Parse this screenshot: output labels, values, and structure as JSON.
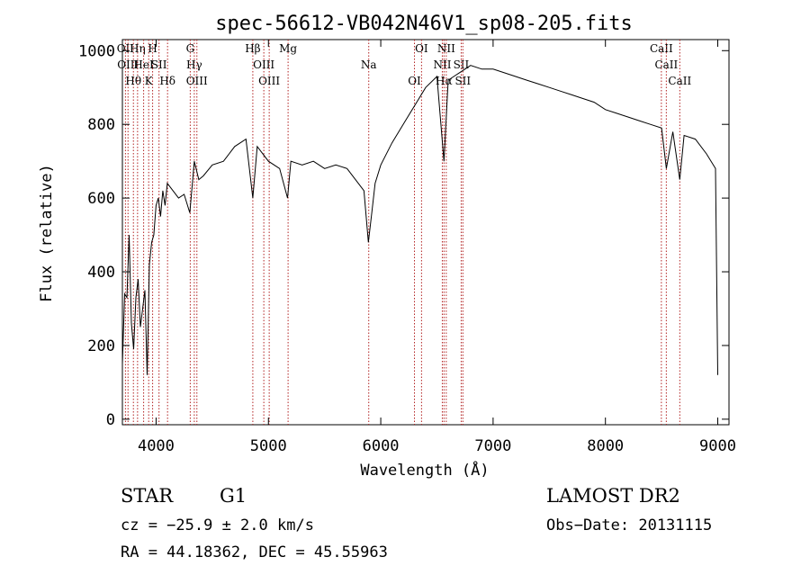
{
  "chart_data": {
    "type": "line",
    "title": "spec-56612-VB042N46V1_sp08-205.fits",
    "xlabel": "Wavelength (Å)",
    "ylabel": "Flux (relative)",
    "xlim": [
      3700,
      9100
    ],
    "ylim": [
      -15,
      1030
    ],
    "x_ticks": [
      4000,
      5000,
      6000,
      7000,
      8000,
      9000
    ],
    "y_ticks": [
      0,
      200,
      400,
      600,
      800,
      1000
    ],
    "x_tick_labels": [
      "4000",
      "5000",
      "6000",
      "7000",
      "8000",
      "9000"
    ],
    "y_tick_labels": [
      "0",
      "200",
      "400",
      "600",
      "800",
      "1000"
    ],
    "line_color": "#000000",
    "marker_color": "#b22222",
    "series": [
      {
        "x": [
          3700,
          3720,
          3740,
          3760,
          3780,
          3800,
          3820,
          3840,
          3860,
          3880,
          3900,
          3920,
          3940,
          3960,
          3980,
          4000,
          4020,
          4040,
          4060,
          4080,
          4100,
          4150,
          4200,
          4250,
          4300,
          4340,
          4380,
          4420,
          4500,
          4600,
          4700,
          4800,
          4861,
          4900,
          5000,
          5100,
          5170,
          5200,
          5300,
          5400,
          5500,
          5600,
          5700,
          5800,
          5850,
          5890,
          5920,
          5950,
          6000,
          6100,
          6200,
          6300,
          6400,
          6500,
          6563,
          6600,
          6700,
          6800,
          6900,
          7000,
          7100,
          7200,
          7300,
          7400,
          7500,
          7600,
          7700,
          7800,
          7900,
          8000,
          8100,
          8200,
          8300,
          8400,
          8500,
          8542,
          8600,
          8662,
          8700,
          8800,
          8900,
          8980,
          9000
        ],
        "y": [
          150,
          340,
          330,
          500,
          260,
          190,
          330,
          380,
          250,
          300,
          350,
          120,
          420,
          480,
          500,
          580,
          600,
          550,
          620,
          580,
          640,
          620,
          600,
          610,
          560,
          700,
          650,
          660,
          690,
          700,
          740,
          760,
          600,
          740,
          700,
          680,
          600,
          700,
          690,
          700,
          680,
          690,
          680,
          640,
          620,
          480,
          560,
          640,
          690,
          750,
          800,
          850,
          900,
          930,
          700,
          920,
          940,
          960,
          950,
          950,
          940,
          930,
          920,
          910,
          900,
          890,
          880,
          870,
          860,
          840,
          830,
          820,
          810,
          800,
          790,
          680,
          780,
          650,
          770,
          760,
          720,
          680,
          120
        ]
      }
    ],
    "line_markers": [
      {
        "wl": 3727,
        "label": "OII"
      },
      {
        "wl": 3750,
        "label": "OIII"
      },
      {
        "wl": 3798,
        "label": "Hθ"
      },
      {
        "wl": 3835,
        "label": "Hη"
      },
      {
        "wl": 3889,
        "label": "HeI"
      },
      {
        "wl": 3934,
        "label": "K"
      },
      {
        "wl": 3969,
        "label": "H"
      },
      {
        "wl": 4026,
        "label": "SII"
      },
      {
        "wl": 4102,
        "label": "Hδ"
      },
      {
        "wl": 4304,
        "label": "G"
      },
      {
        "wl": 4340,
        "label": "Hγ"
      },
      {
        "wl": 4363,
        "label": "OIII"
      },
      {
        "wl": 4861,
        "label": "Hβ"
      },
      {
        "wl": 4959,
        "label": "OIII"
      },
      {
        "wl": 5007,
        "label": "OIII"
      },
      {
        "wl": 5175,
        "label": "Mg"
      },
      {
        "wl": 5893,
        "label": "Na"
      },
      {
        "wl": 6300,
        "label": "OI"
      },
      {
        "wl": 6363,
        "label": "OI"
      },
      {
        "wl": 6548,
        "label": "NII"
      },
      {
        "wl": 6563,
        "label": "Hα"
      },
      {
        "wl": 6583,
        "label": "NII"
      },
      {
        "wl": 6716,
        "label": "SII"
      },
      {
        "wl": 6731,
        "label": "SII"
      },
      {
        "wl": 8498,
        "label": "CaII"
      },
      {
        "wl": 8542,
        "label": "CaII"
      },
      {
        "wl": 8662,
        "label": "CaII"
      }
    ]
  },
  "info": {
    "object_class": "STAR",
    "subclass": "G1",
    "survey": "LAMOST DR2",
    "cz": "cz = −25.9 ± 2.0 km/s",
    "obs_date": "Obs−Date: 20131115",
    "coords": "RA =  44.18362, DEC =  45.55963"
  }
}
